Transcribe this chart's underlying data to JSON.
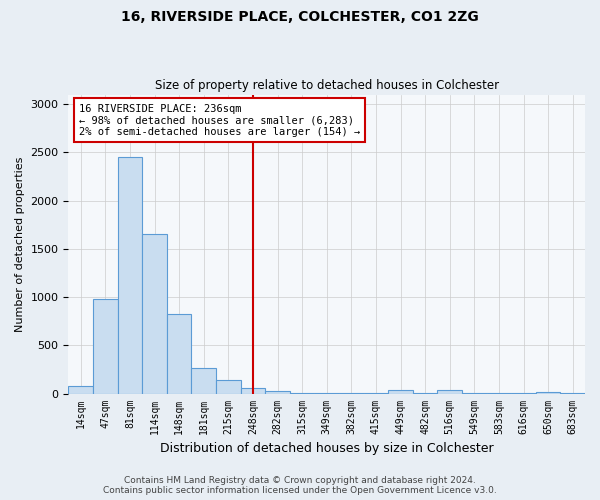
{
  "title": "16, RIVERSIDE PLACE, COLCHESTER, CO1 2ZG",
  "subtitle": "Size of property relative to detached houses in Colchester",
  "xlabel": "Distribution of detached houses by size in Colchester",
  "ylabel": "Number of detached properties",
  "bar_color": "#c9ddf0",
  "bar_edge_color": "#5b9bd5",
  "categories": [
    "14sqm",
    "47sqm",
    "81sqm",
    "114sqm",
    "148sqm",
    "181sqm",
    "215sqm",
    "248sqm",
    "282sqm",
    "315sqm",
    "349sqm",
    "382sqm",
    "415sqm",
    "449sqm",
    "482sqm",
    "516sqm",
    "549sqm",
    "583sqm",
    "616sqm",
    "650sqm",
    "683sqm"
  ],
  "values": [
    75,
    980,
    2450,
    1650,
    820,
    270,
    140,
    60,
    30,
    10,
    5,
    5,
    5,
    35,
    5,
    40,
    5,
    5,
    5,
    20,
    5
  ],
  "ylim": [
    0,
    3100
  ],
  "yticks": [
    0,
    500,
    1000,
    1500,
    2000,
    2500,
    3000
  ],
  "property_line_x": 7,
  "property_line_color": "#cc0000",
  "annotation_text": "16 RIVERSIDE PLACE: 236sqm\n← 98% of detached houses are smaller (6,283)\n2% of semi-detached houses are larger (154) →",
  "annotation_box_color": "#ffffff",
  "annotation_box_edge": "#cc0000",
  "footer_line1": "Contains HM Land Registry data © Crown copyright and database right 2024.",
  "footer_line2": "Contains public sector information licensed under the Open Government Licence v3.0.",
  "background_color": "#e8eef4",
  "plot_background": "#f5f8fb"
}
